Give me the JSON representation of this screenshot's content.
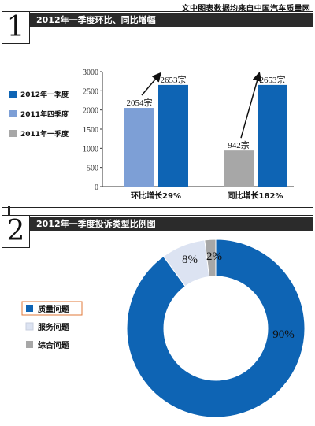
{
  "source_note": "文中图表数据均来自中国汽车质量网",
  "panel1": {
    "number": "1",
    "title": "2012年一季度环比、同比增幅"
  },
  "panel2": {
    "number": "2",
    "title": "2012年一季度投诉类型比例图"
  },
  "chart_data": [
    {
      "type": "bar",
      "title": "2012年一季度环比、同比增幅",
      "ylim": [
        0,
        3000
      ],
      "yticks": [
        0,
        500,
        1000,
        1500,
        2000,
        2500,
        3000
      ],
      "legend_position": "left",
      "categories": [
        "环比增长29%",
        "同比增长182%"
      ],
      "series": [
        {
          "name": "2012年一季度",
          "color": "#0e64b4",
          "values": [
            2653,
            2653
          ],
          "labels": [
            "2653宗",
            "2653宗"
          ]
        },
        {
          "name": "2011年四季度",
          "color": "#7d9fd6",
          "values": [
            2054,
            null
          ],
          "labels": [
            "2054宗",
            ""
          ]
        },
        {
          "name": "2011年一季度",
          "color": "#a7a7a7",
          "values": [
            null,
            942
          ],
          "labels": [
            "",
            "942宗"
          ]
        }
      ],
      "legend": [
        {
          "name": "2012年一季度",
          "color": "#0e64b4"
        },
        {
          "name": "2011年四季度",
          "color": "#7d9fd6"
        },
        {
          "name": "2011年一季度",
          "color": "#a7a7a7"
        }
      ]
    },
    {
      "type": "pie",
      "variant": "donut",
      "title": "2012年一季度投诉类型比例图",
      "legend_position": "left",
      "slices": [
        {
          "name": "质量问题",
          "value": 90,
          "label": "90%",
          "color": "#0e64b4"
        },
        {
          "name": "服务问题",
          "value": 8,
          "label": "8%",
          "color": "#dce3f2"
        },
        {
          "name": "综合问题",
          "value": 2,
          "label": "2%",
          "color": "#a7a7a7"
        }
      ]
    }
  ]
}
